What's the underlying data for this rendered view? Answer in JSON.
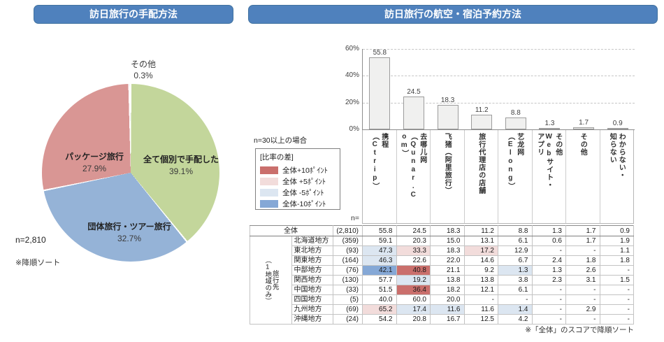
{
  "left_panel": {
    "title": "訪日旅行の手配方法",
    "n_label": "n=2,810",
    "sort_note": "※降順ソート"
  },
  "right_panel": {
    "title": "訪日旅行の航空・宿泊予約方法",
    "note_top": "n=30以上の場合",
    "n_eq": "n=",
    "legend": {
      "title": "[比率の差]",
      "items": [
        {
          "label": "全体+10ﾎﾟｲﾝﾄ",
          "color": "#ca6f6c",
          "code": "p10"
        },
        {
          "label": "全体 +5ﾎﾟｲﾝﾄ",
          "color": "#f2dcdb",
          "code": "p5"
        },
        {
          "label": "全体 -5ﾎﾟｲﾝﾄ",
          "color": "#dce6f1",
          "code": "m5"
        },
        {
          "label": "全体-10ﾎﾟｲﾝﾄ",
          "color": "#85a8d6",
          "code": "m10"
        }
      ]
    },
    "bottom_note": "※「全体」のスコアで降順ソート"
  },
  "highlight_colors": {
    "p10": "#ca6f6c",
    "p5": "#f2dcdb",
    "m5": "#dce6f1",
    "m10": "#85a8d6"
  },
  "chart_data": [
    {
      "type": "pie",
      "title": "訪日旅行の手配方法",
      "labels": [
        "全て個別で手配した",
        "団体旅行・ツアー旅行",
        "パッケージ旅行",
        "その他"
      ],
      "values": [
        39.1,
        32.7,
        27.9,
        0.3
      ],
      "value_labels": [
        "39.1%",
        "32.7%",
        "27.9%",
        "0.3%"
      ],
      "colors": [
        "#c3d69b",
        "#95b3d7",
        "#d99694",
        "#e6e6f0"
      ],
      "n": "n=2,810",
      "note": "※降順ソート",
      "start_angle": "12 o'clock, clockwise"
    },
    {
      "type": "bar",
      "title": "訪日旅行の航空・宿泊予約方法",
      "categories": [
        "携程（Ctrip）",
        "去哪儿网（Qunar.Com）",
        "飞猪（阿里旅行）",
        "旅行代理店の店舗",
        "艺龙网（Elong）",
        "その他Webサイト・アプリ",
        "その他",
        "わからない・知らない"
      ],
      "category_lines": [
        [
          "携程",
          "（Ctrip）"
        ],
        [
          "去哪儿网",
          "（Qunar.C",
          "om）"
        ],
        [
          "飞猪（阿里旅行）"
        ],
        [
          "旅行代理店の店舗"
        ],
        [
          "艺龙网",
          "（Elong）"
        ],
        [
          "その他",
          "Webサイト・",
          "アプリ"
        ],
        [
          "その他"
        ],
        [
          "わからない・",
          "知らない"
        ]
      ],
      "values": [
        55.8,
        24.5,
        18.3,
        11.2,
        8.8,
        1.3,
        1.7,
        0.9
      ],
      "value_labels": [
        "55.8",
        "24.5",
        "18.3",
        "11.2",
        "8.8",
        "1.3",
        "1.7",
        "0.9"
      ],
      "yticks": [
        "60%",
        "40%",
        "20%",
        "0%"
      ],
      "ylim": [
        0,
        60
      ],
      "grid": true,
      "bar_fill": "#f0f0ef",
      "bar_border": "#9c9c9c"
    },
    {
      "type": "table",
      "corner": "全体",
      "total_row": {
        "name": "全体",
        "n": "(2,810)",
        "values": [
          "55.8",
          "24.5",
          "18.3",
          "11.2",
          "8.8",
          "1.3",
          "1.7",
          "0.9"
        ]
      },
      "group_label": "旅行先\n（1地域のみ）",
      "rows": [
        {
          "name": "北海道地方",
          "n": "(359)",
          "values": [
            "59.1",
            "20.3",
            "15.0",
            "13.1",
            "6.1",
            "0.6",
            "1.7",
            "1.9"
          ],
          "hl": [
            "",
            "",
            "",
            "",
            "",
            "",
            "",
            ""
          ]
        },
        {
          "name": "東北地方",
          "n": "(93)",
          "values": [
            "47.3",
            "33.3",
            "18.3",
            "17.2",
            "12.9",
            "-",
            "-",
            "1.1"
          ],
          "hl": [
            "m5",
            "p5",
            "",
            "p5",
            "",
            "",
            "",
            ""
          ]
        },
        {
          "name": "関東地方",
          "n": "(164)",
          "values": [
            "46.3",
            "22.6",
            "22.0",
            "14.6",
            "6.7",
            "2.4",
            "1.8",
            "1.8"
          ],
          "hl": [
            "m5",
            "",
            "",
            "",
            "",
            "",
            "",
            ""
          ]
        },
        {
          "name": "中部地方",
          "n": "(76)",
          "values": [
            "42.1",
            "40.8",
            "21.1",
            "9.2",
            "1.3",
            "1.3",
            "2.6",
            "-"
          ],
          "hl": [
            "m10",
            "p10",
            "",
            "",
            "m5",
            "",
            "",
            ""
          ]
        },
        {
          "name": "関西地方",
          "n": "(130)",
          "values": [
            "57.7",
            "19.2",
            "13.8",
            "13.8",
            "3.8",
            "2.3",
            "3.1",
            "1.5"
          ],
          "hl": [
            "",
            "m5",
            "",
            "",
            "",
            "",
            "",
            ""
          ]
        },
        {
          "name": "中国地方",
          "n": "(33)",
          "values": [
            "51.5",
            "36.4",
            "18.2",
            "12.1",
            "6.1",
            "-",
            "-",
            "-"
          ],
          "hl": [
            "",
            "p10",
            "",
            "",
            "",
            "",
            "",
            ""
          ]
        },
        {
          "name": "四国地方",
          "n": "(5)",
          "values": [
            "40.0",
            "60.0",
            "20.0",
            "-",
            "-",
            "-",
            "-",
            "-"
          ],
          "hl": [
            "",
            "",
            "",
            "",
            "",
            "",
            "",
            ""
          ]
        },
        {
          "name": "九州地方",
          "n": "(69)",
          "values": [
            "65.2",
            "17.4",
            "11.6",
            "11.6",
            "1.4",
            "-",
            "2.9",
            "-"
          ],
          "hl": [
            "p5",
            "m5",
            "m5",
            "",
            "m5",
            "",
            "",
            ""
          ]
        },
        {
          "name": "沖縄地方",
          "n": "(24)",
          "values": [
            "54.2",
            "20.8",
            "16.7",
            "12.5",
            "4.2",
            "-",
            "-",
            "-"
          ],
          "hl": [
            "",
            "",
            "",
            "",
            "",
            "",
            "",
            ""
          ]
        }
      ]
    }
  ]
}
